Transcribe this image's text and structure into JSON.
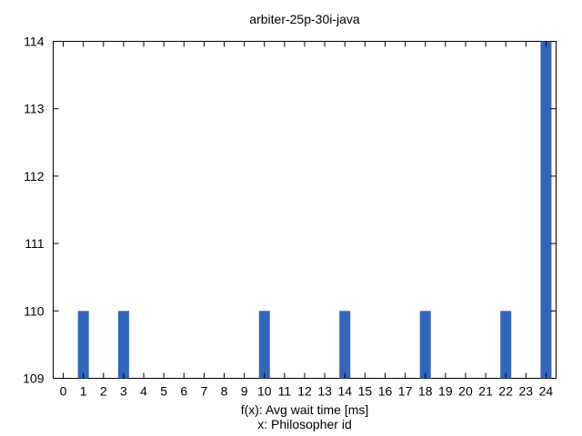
{
  "chart_data": {
    "type": "bar",
    "title": "arbiter-25p-30i-java",
    "xlabel_lines": [
      "f(x): Avg wait time [ms]",
      "x: Philosopher id"
    ],
    "ylabel": "",
    "categories": [
      "0",
      "1",
      "2",
      "3",
      "4",
      "5",
      "6",
      "7",
      "8",
      "9",
      "10",
      "11",
      "12",
      "13",
      "14",
      "15",
      "16",
      "17",
      "18",
      "19",
      "20",
      "21",
      "22",
      "23",
      "24"
    ],
    "values": [
      109,
      110,
      109,
      110,
      109,
      109,
      109,
      109,
      109,
      109,
      110,
      109,
      109,
      109,
      110,
      109,
      109,
      109,
      110,
      109,
      109,
      109,
      110,
      109,
      114
    ],
    "ylim": [
      109,
      114
    ],
    "yticks": [
      109,
      110,
      111,
      112,
      113,
      114
    ],
    "bar_color": "#3366bb",
    "grid": false,
    "legend": "none"
  }
}
